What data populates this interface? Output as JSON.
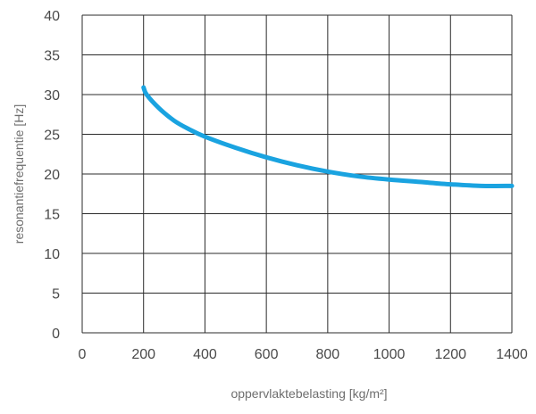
{
  "chart_data": {
    "type": "line",
    "title": "",
    "xlabel": "oppervlaktebelasting [kg/m²]",
    "ylabel": "resonantiefrequentie [Hz]",
    "xlim": [
      0,
      1400
    ],
    "ylim": [
      0,
      40
    ],
    "xticks": [
      "0",
      "200",
      "400",
      "600",
      "800",
      "1000",
      "1200",
      "1400"
    ],
    "yticks": [
      "0",
      "5",
      "10",
      "15",
      "20",
      "25",
      "30",
      "35",
      "40"
    ],
    "grid": true,
    "legend": "none",
    "series": [
      {
        "color": "#1aa3e0",
        "x": [
          200,
          210,
          250,
          300,
          350,
          400,
          500,
          600,
          700,
          800,
          900,
          1000,
          1100,
          1200,
          1300,
          1400
        ],
        "y": [
          30.9,
          30.0,
          28.3,
          26.7,
          25.6,
          24.7,
          23.3,
          22.1,
          21.1,
          20.3,
          19.7,
          19.3,
          19.0,
          18.7,
          18.5,
          18.5
        ]
      }
    ]
  }
}
